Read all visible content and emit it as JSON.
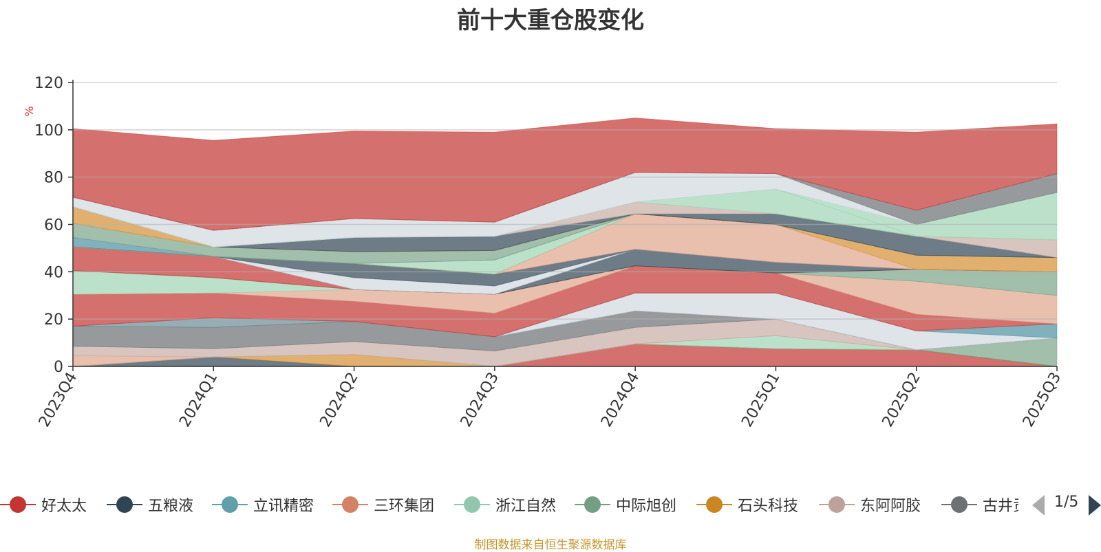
{
  "chart_data": {
    "type": "area",
    "title": "前十大重仓股变化",
    "ylabel": "%",
    "ylim": [
      0,
      120
    ],
    "yticks": [
      0,
      20,
      40,
      60,
      80,
      100,
      120
    ],
    "categories": [
      "2023Q4",
      "2024Q1",
      "2024Q2",
      "2024Q3",
      "2024Q4",
      "2025Q1",
      "2025Q2",
      "2025Q3"
    ],
    "grid": true,
    "stacked": true,
    "series": [
      {
        "color": "#c23531",
        "values": [
          0,
          0,
          0,
          0,
          9.5,
          7.5,
          7,
          0
        ]
      },
      {
        "color": "#2f4554",
        "values": [
          0,
          4,
          0,
          0,
          0,
          0,
          0,
          0
        ]
      },
      {
        "color": "#d48f32",
        "values": [
          0,
          0,
          5,
          0,
          0,
          0,
          0,
          0
        ]
      },
      {
        "color": "#7aa488",
        "values": [
          0,
          0,
          0,
          0,
          0,
          0,
          0,
          12
        ]
      },
      {
        "color": "#9fd4b4",
        "values": [
          0,
          0,
          0,
          0,
          0,
          5.5,
          0,
          0
        ]
      },
      {
        "color": "#e0a48c",
        "values": [
          4.5,
          0,
          0,
          0,
          0,
          0,
          0,
          0
        ]
      },
      {
        "color": "#c8aca4",
        "values": [
          4,
          3.5,
          5.5,
          6.5,
          7,
          7,
          0,
          0
        ]
      },
      {
        "color": "#6b6f72",
        "values": [
          8.5,
          9,
          8.5,
          6,
          7,
          0,
          0,
          0
        ]
      },
      {
        "color": "#6a8a96",
        "values": [
          0,
          4,
          0,
          0,
          0,
          0,
          0,
          0
        ]
      },
      {
        "color": "#d2d8df",
        "values": [
          0,
          0,
          0,
          0,
          7.5,
          11,
          8,
          0
        ]
      },
      {
        "color": "#4b90a0",
        "values": [
          0,
          0,
          0,
          0,
          0,
          0,
          0,
          6
        ]
      },
      {
        "color": "#c23531",
        "values": [
          13.5,
          10.5,
          8.5,
          10,
          11.5,
          8.5,
          7,
          0
        ]
      },
      {
        "color": "#e0a48c",
        "values": [
          0,
          0,
          5,
          8,
          0,
          0,
          14,
          12
        ]
      },
      {
        "color": "#9fd4b4",
        "values": [
          10,
          6.5,
          0,
          0,
          0,
          0,
          0,
          0
        ]
      },
      {
        "color": "#7aa488",
        "values": [
          0,
          0,
          0,
          0,
          0,
          0,
          5,
          10
        ]
      },
      {
        "color": "#c23531",
        "values": [
          10,
          9,
          0,
          0,
          0,
          0,
          0,
          0
        ]
      },
      {
        "color": "#2f4554",
        "values": [
          0,
          0,
          0,
          0,
          7,
          4.5,
          0,
          0
        ]
      },
      {
        "color": "#d2d8df",
        "values": [
          0,
          0,
          5,
          3.5,
          0,
          0,
          0,
          0
        ]
      },
      {
        "color": "#2f4554",
        "values": [
          0,
          0,
          6,
          5,
          0,
          0,
          0,
          0
        ]
      },
      {
        "color": "#e0a48c",
        "values": [
          0,
          0,
          0,
          0,
          15,
          16,
          0,
          0
        ]
      },
      {
        "color": "#d48f32",
        "values": [
          0,
          0,
          0,
          0,
          0,
          0,
          6,
          6
        ]
      },
      {
        "color": "#9fd4b4",
        "values": [
          0,
          0,
          0,
          6,
          0,
          0,
          0,
          0
        ]
      },
      {
        "color": "#4b90a0",
        "values": [
          4,
          0,
          0,
          0,
          0,
          0,
          0,
          0
        ]
      },
      {
        "color": "#7aa488",
        "values": [
          6,
          4,
          5,
          4,
          0,
          0,
          0,
          0
        ]
      },
      {
        "color": "#d48f32",
        "values": [
          7,
          0,
          0,
          0,
          0,
          0,
          0,
          0
        ]
      },
      {
        "color": "#2f4554",
        "values": [
          0,
          0,
          6,
          6,
          0,
          4.5,
          8,
          0
        ]
      },
      {
        "color": "#c8aca4",
        "values": [
          0,
          0,
          0,
          0,
          5,
          0,
          0,
          7.5
        ]
      },
      {
        "color": "#9fd4b4",
        "values": [
          0,
          0,
          0,
          0,
          0,
          10.5,
          0,
          0
        ]
      },
      {
        "color": "#9fd4b4",
        "values": [
          0,
          0,
          0,
          0,
          0,
          0,
          5,
          20
        ]
      },
      {
        "color": "#d2d8df",
        "values": [
          4,
          7,
          8,
          6,
          12.5,
          6.5,
          0,
          0
        ]
      },
      {
        "color": "#6b6f72",
        "values": [
          0,
          0,
          0,
          0,
          0,
          0,
          6,
          8
        ]
      },
      {
        "color": "#c23531",
        "values": [
          29,
          38,
          37,
          38,
          23,
          19,
          33,
          21
        ]
      }
    ]
  },
  "legend": {
    "items": [
      {
        "label": "好太太",
        "color": "#c23531"
      },
      {
        "label": "五粮液",
        "color": "#2f4554"
      },
      {
        "label": "立讯精密",
        "color": "#61a0a8"
      },
      {
        "label": "三环集团",
        "color": "#d48265"
      },
      {
        "label": "浙江自然",
        "color": "#91c7ae"
      },
      {
        "label": "中际旭创",
        "color": "#749f83"
      },
      {
        "label": "石头科技",
        "color": "#ca8622"
      },
      {
        "label": "东阿阿胶",
        "color": "#bda29a"
      },
      {
        "label": "古井贡酒",
        "color": "#6e7074"
      }
    ],
    "page": "1/5"
  },
  "source_note": "制图数据来自恒生聚源数据库"
}
